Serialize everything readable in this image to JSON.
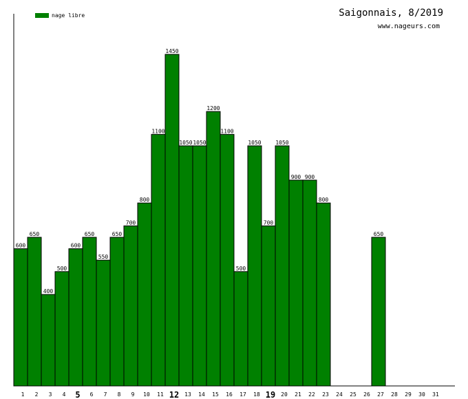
{
  "chart_data": {
    "type": "bar",
    "title": "Saigonnais, 8/2019",
    "subtitle": "www.nageurs.com",
    "series": [
      {
        "name": "nage libre",
        "color": "#008000",
        "values": [
          600,
          650,
          400,
          500,
          600,
          650,
          550,
          650,
          700,
          800,
          1100,
          1450,
          1050,
          1050,
          1200,
          1100,
          500,
          1050,
          700,
          1050,
          900,
          900,
          800,
          0,
          0,
          0,
          650,
          0,
          0,
          0,
          0
        ]
      }
    ],
    "categories": [
      "1",
      "2",
      "3",
      "4",
      "5",
      "6",
      "7",
      "8",
      "9",
      "10",
      "11",
      "12",
      "13",
      "14",
      "15",
      "16",
      "17",
      "18",
      "19",
      "20",
      "21",
      "22",
      "23",
      "24",
      "25",
      "26",
      "27",
      "28",
      "29",
      "30",
      "31"
    ],
    "highlighted_categories": [
      "5",
      "12",
      "19"
    ],
    "ylim": [
      0,
      1450
    ],
    "legend_position": "top-left",
    "grid": false
  }
}
